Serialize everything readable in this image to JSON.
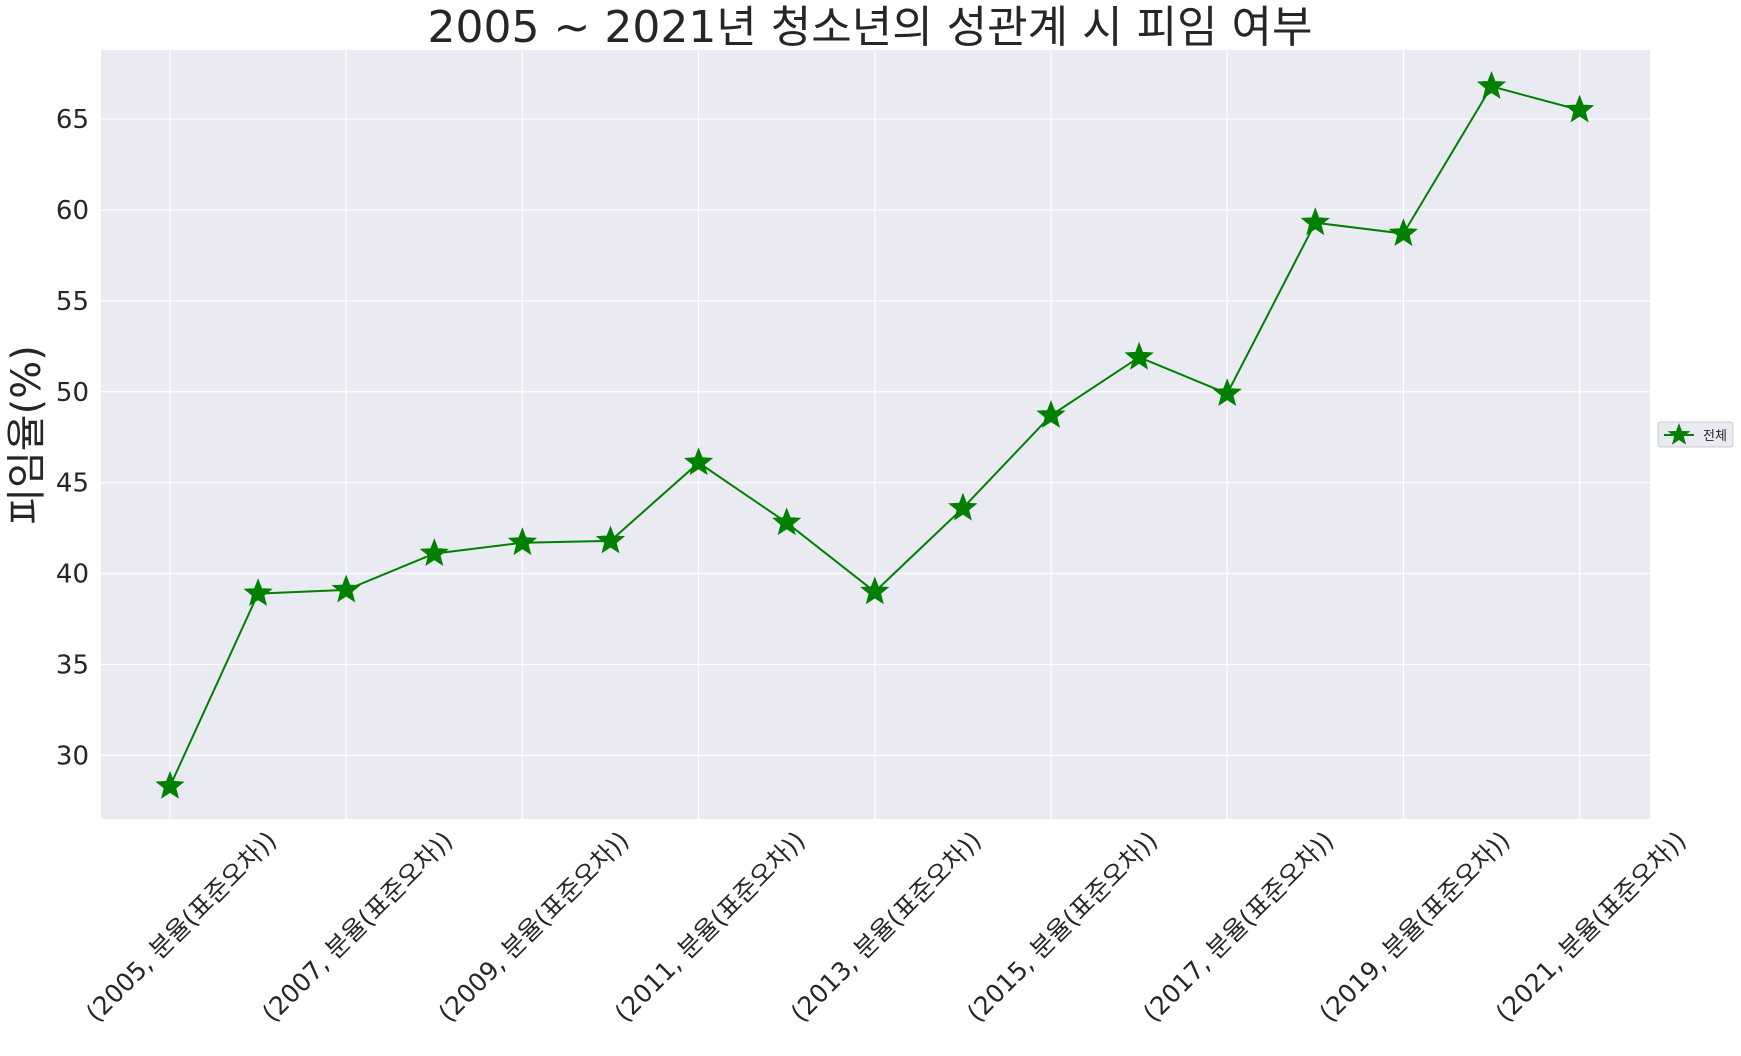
{
  "chart_data": {
    "type": "line",
    "title": "2005 ~ 2021년 청소년의 성관계 시 피임 여부",
    "xlabel": "",
    "ylabel": "피임율(%)",
    "ylim": [
      26.5,
      68.8
    ],
    "yticks": [
      30,
      35,
      40,
      45,
      50,
      55,
      60,
      65
    ],
    "x_ticks": [
      "(2005, 분율(표준오차))",
      "(2007, 분율(표준오차))",
      "(2009, 분율(표준오차))",
      "(2011, 분율(표준오차))",
      "(2013, 분율(표준오차))",
      "(2015, 분율(표준오차))",
      "(2017, 분율(표준오차))",
      "(2019, 분율(표준오차))",
      "(2021, 분율(표준오차))"
    ],
    "grid": true,
    "legend_position": "center-right outside",
    "series": [
      {
        "name": "전체",
        "color": "#008000",
        "marker": "star",
        "values": [
          28.3,
          38.9,
          39.1,
          41.1,
          41.7,
          41.8,
          46.1,
          42.8,
          39.0,
          43.6,
          48.7,
          51.9,
          49.9,
          59.3,
          58.7,
          66.8,
          65.5
        ]
      }
    ]
  }
}
